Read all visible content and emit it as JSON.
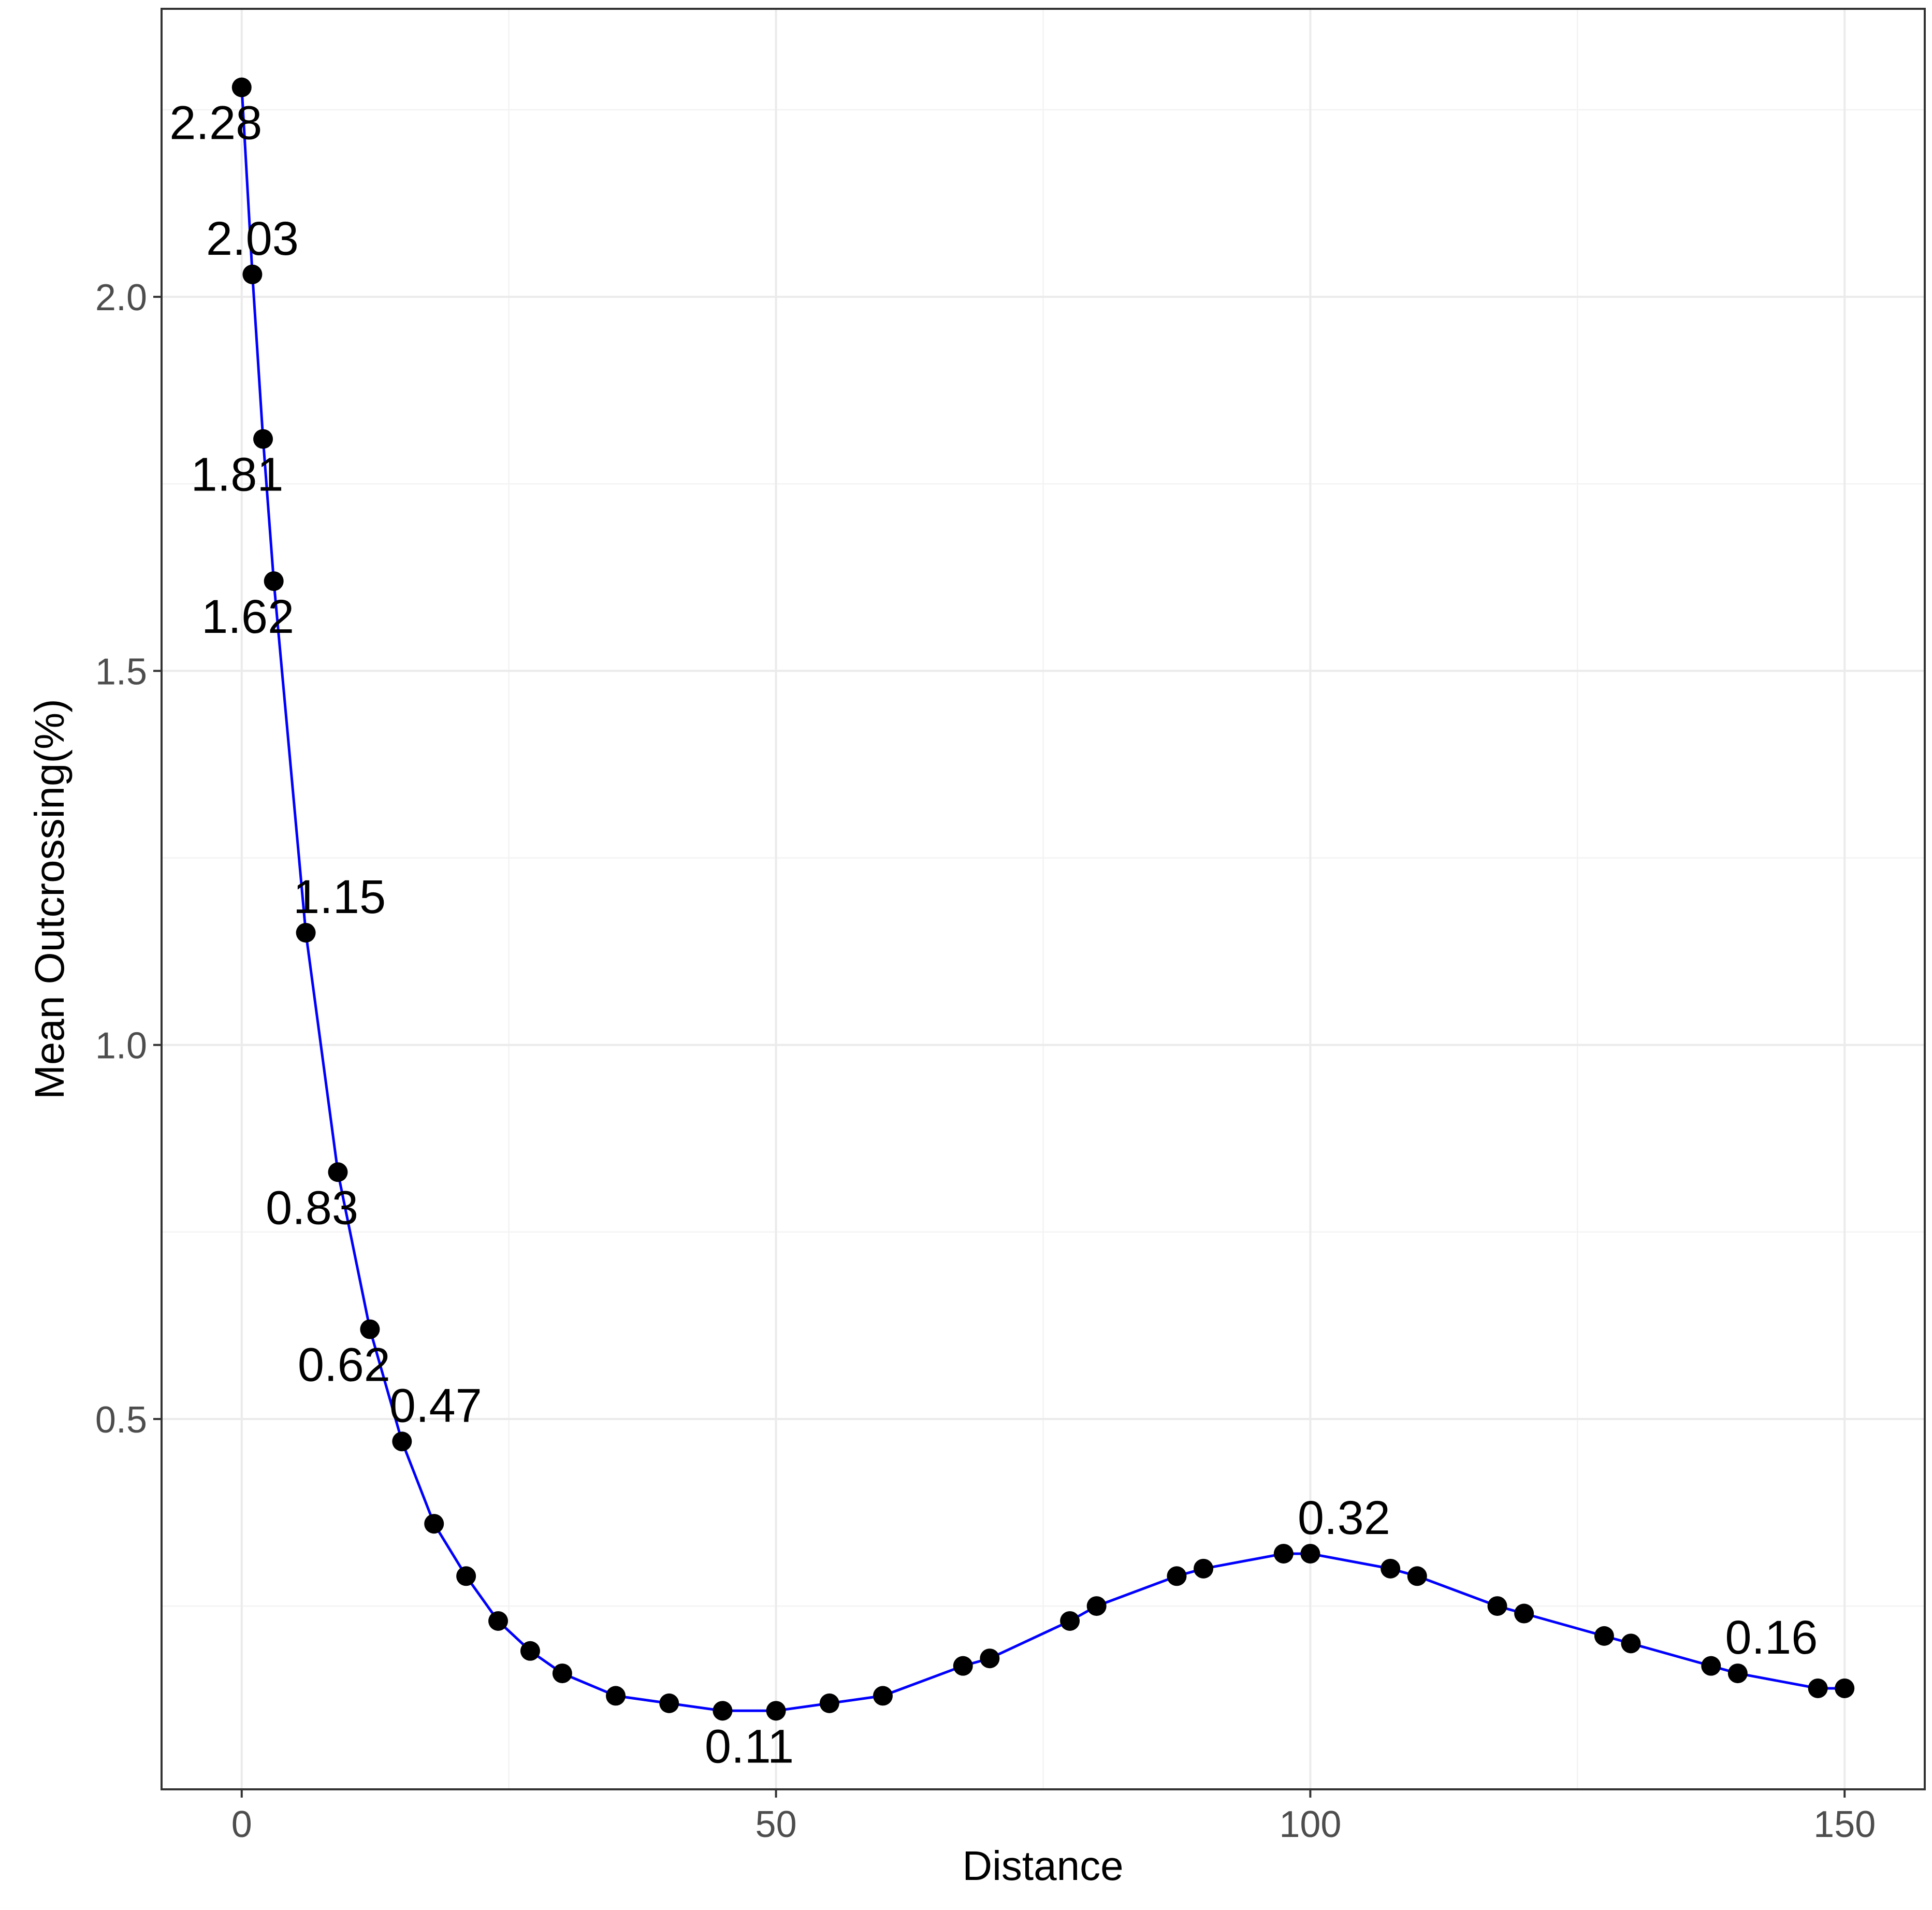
{
  "chart_data": {
    "type": "line",
    "title": "",
    "xlabel": "Distance",
    "ylabel": "Mean Outcrossing(%)",
    "xlim": [
      -7.5,
      157.5
    ],
    "ylim": [
      0.005,
      2.385
    ],
    "x_ticks": [
      0,
      50,
      100,
      150
    ],
    "x_tick_labels": [
      "0",
      "50",
      "100",
      "150"
    ],
    "y_ticks": [
      0.5,
      1.0,
      1.5,
      2.0
    ],
    "y_tick_labels": [
      "0.5",
      "1.0",
      "1.5",
      "2.0"
    ],
    "grid": true,
    "legend": "none",
    "line_color": "#0000ff",
    "point_color": "#000000",
    "series": [
      {
        "x": [
          0,
          1,
          2,
          3,
          6,
          9,
          12,
          15,
          18,
          21,
          24,
          27,
          30,
          35,
          40,
          45,
          50,
          55,
          60,
          67.5,
          70,
          77.5,
          80,
          87.5,
          90,
          97.5,
          100,
          107.5,
          110,
          117.5,
          120,
          127.5,
          130,
          137.5,
          140,
          147.5,
          150
        ],
        "y": [
          2.28,
          2.03,
          1.81,
          1.62,
          1.15,
          0.83,
          0.62,
          0.47,
          0.36,
          0.29,
          0.23,
          0.19,
          0.16,
          0.13,
          0.12,
          0.11,
          0.11,
          0.12,
          0.13,
          0.17,
          0.18,
          0.23,
          0.25,
          0.29,
          0.3,
          0.32,
          0.32,
          0.3,
          0.29,
          0.25,
          0.24,
          0.21,
          0.2,
          0.17,
          0.16,
          0.14,
          0.14
        ]
      }
    ],
    "annotations": [
      {
        "text": "2.28",
        "x": 0,
        "y": 2.28,
        "pos": "below-left"
      },
      {
        "text": "2.03",
        "x": 1,
        "y": 2.03,
        "pos": "above"
      },
      {
        "text": "1.81",
        "x": 2,
        "y": 1.81,
        "pos": "below-left"
      },
      {
        "text": "1.62",
        "x": 3,
        "y": 1.62,
        "pos": "below-left"
      },
      {
        "text": "1.15",
        "x": 6,
        "y": 1.15,
        "pos": "above-right"
      },
      {
        "text": "0.83",
        "x": 9,
        "y": 0.83,
        "pos": "below-left"
      },
      {
        "text": "0.62",
        "x": 12,
        "y": 0.62,
        "pos": "below-left"
      },
      {
        "text": "0.47",
        "x": 15,
        "y": 0.47,
        "pos": "above-right"
      },
      {
        "text": "0.11",
        "x": 47.5,
        "y": 0.11,
        "pos": "below"
      },
      {
        "text": "0.32",
        "x": 100,
        "y": 0.32,
        "pos": "above-right"
      },
      {
        "text": "0.16",
        "x": 140,
        "y": 0.16,
        "pos": "above-right"
      }
    ]
  }
}
